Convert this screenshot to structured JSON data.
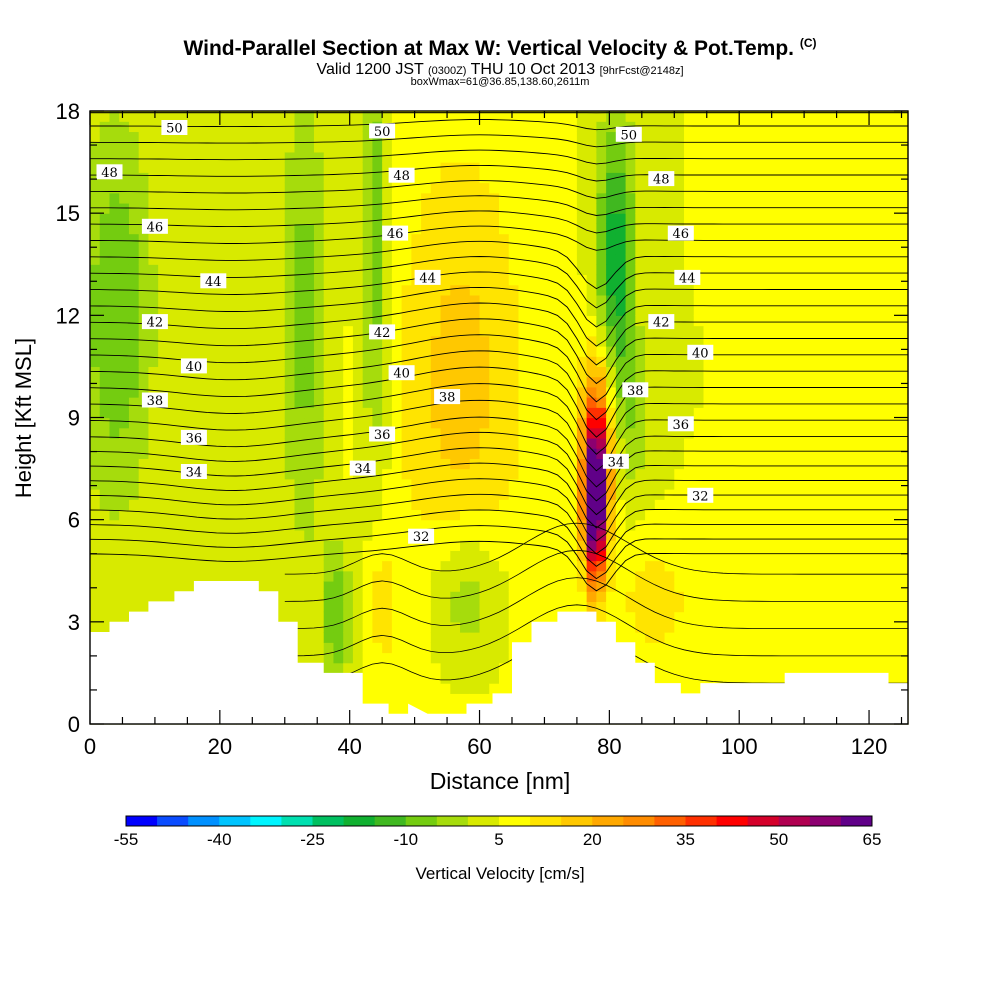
{
  "title": "Wind-Parallel Section at Max W: Vertical Velocity & Pot.Temp.",
  "title_suffix": "(C)",
  "valid_prefix": "Valid 1200 JST",
  "valid_utc": "(0300Z)",
  "valid_date": "THU 10 Oct 2013",
  "forecast": "[9hrFcst@2148z]",
  "boxwmax": "boxWmax=61@36.85,138.60,2611m",
  "chart_data": {
    "type": "heatmap",
    "xlabel": "Distance [nm]",
    "ylabel": "Height [Kft MSL]",
    "xlim": [
      0,
      126
    ],
    "ylim": [
      0,
      18
    ],
    "x_ticks": [
      0,
      20,
      40,
      60,
      80,
      100,
      120
    ],
    "y_ticks": [
      0,
      3,
      6,
      9,
      12,
      15,
      18
    ],
    "colorbar_label": "Vertical Velocity [cm/s]",
    "colorbar_ticks": [
      -55,
      -40,
      -25,
      -10,
      5,
      20,
      35,
      50,
      65
    ],
    "colorbar_colors": [
      "#0000ff",
      "#0a4cff",
      "#0090ff",
      "#00c4ff",
      "#00f5ff",
      "#00e0b0",
      "#00c060",
      "#10b030",
      "#40b820",
      "#74cc10",
      "#a6dc0c",
      "#d8ea00",
      "#ffff00",
      "#ffe400",
      "#ffc800",
      "#ffa800",
      "#ff8c00",
      "#ff6000",
      "#ff3000",
      "#ff0000",
      "#d4002a",
      "#b00050",
      "#8c0070",
      "#600088"
    ],
    "contour_variable": "Pot.Temp.",
    "contour_labels": [
      {
        "v": "50",
        "x": 13,
        "y": 17.5
      },
      {
        "v": "50",
        "x": 45,
        "y": 17.4
      },
      {
        "v": "50",
        "x": 83,
        "y": 17.3
      },
      {
        "v": "48",
        "x": 3,
        "y": 16.2
      },
      {
        "v": "48",
        "x": 48,
        "y": 16.1
      },
      {
        "v": "48",
        "x": 88,
        "y": 16.0
      },
      {
        "v": "46",
        "x": 10,
        "y": 14.6
      },
      {
        "v": "46",
        "x": 47,
        "y": 14.4
      },
      {
        "v": "46",
        "x": 91,
        "y": 14.4
      },
      {
        "v": "44",
        "x": 19,
        "y": 13.0
      },
      {
        "v": "44",
        "x": 52,
        "y": 13.1
      },
      {
        "v": "44",
        "x": 92,
        "y": 13.1
      },
      {
        "v": "42",
        "x": 10,
        "y": 11.8
      },
      {
        "v": "42",
        "x": 45,
        "y": 11.5
      },
      {
        "v": "42",
        "x": 88,
        "y": 11.8
      },
      {
        "v": "40",
        "x": 16,
        "y": 10.5
      },
      {
        "v": "40",
        "x": 48,
        "y": 10.3
      },
      {
        "v": "40",
        "x": 94,
        "y": 10.9
      },
      {
        "v": "38",
        "x": 10,
        "y": 9.5
      },
      {
        "v": "38",
        "x": 55,
        "y": 9.6
      },
      {
        "v": "38",
        "x": 84,
        "y": 9.8
      },
      {
        "v": "36",
        "x": 16,
        "y": 8.4
      },
      {
        "v": "36",
        "x": 45,
        "y": 8.5
      },
      {
        "v": "36",
        "x": 91,
        "y": 8.8
      },
      {
        "v": "34",
        "x": 16,
        "y": 7.4
      },
      {
        "v": "34",
        "x": 42,
        "y": 7.5
      },
      {
        "v": "34",
        "x": 81,
        "y": 7.7
      },
      {
        "v": "32",
        "x": 51,
        "y": 5.5
      },
      {
        "v": "32",
        "x": 94,
        "y": 6.7
      }
    ],
    "terrain_profile": [
      [
        0,
        2.7
      ],
      [
        3,
        2.7
      ],
      [
        3,
        3.0
      ],
      [
        6,
        3.0
      ],
      [
        6,
        3.3
      ],
      [
        9,
        3.3
      ],
      [
        9,
        3.6
      ],
      [
        13,
        3.6
      ],
      [
        13,
        3.9
      ],
      [
        16,
        3.9
      ],
      [
        16,
        4.2
      ],
      [
        26,
        4.2
      ],
      [
        26,
        3.9
      ],
      [
        29,
        3.9
      ],
      [
        29,
        3.0
      ],
      [
        32,
        3.0
      ],
      [
        32,
        1.8
      ],
      [
        36,
        1.8
      ],
      [
        36,
        1.5
      ],
      [
        42,
        1.5
      ],
      [
        42,
        0.6
      ],
      [
        46,
        0.6
      ],
      [
        46,
        0.3
      ],
      [
        49,
        0.3
      ],
      [
        49,
        0.6
      ],
      [
        52,
        0.3
      ],
      [
        58,
        0.3
      ],
      [
        58,
        0.6
      ],
      [
        62,
        0.6
      ],
      [
        62,
        0.9
      ],
      [
        65,
        0.9
      ],
      [
        65,
        2.4
      ],
      [
        68,
        2.4
      ],
      [
        68,
        3.0
      ],
      [
        72,
        3.0
      ],
      [
        72,
        3.3
      ],
      [
        78,
        3.3
      ],
      [
        78,
        3.0
      ],
      [
        81,
        3.0
      ],
      [
        81,
        2.4
      ],
      [
        84,
        2.4
      ],
      [
        84,
        1.8
      ],
      [
        87,
        1.8
      ],
      [
        87,
        1.2
      ],
      [
        91,
        1.2
      ],
      [
        91,
        0.9
      ],
      [
        94,
        0.9
      ],
      [
        94,
        1.2
      ],
      [
        107,
        1.2
      ],
      [
        107,
        1.5
      ],
      [
        123,
        1.5
      ],
      [
        123,
        1.2
      ],
      [
        126,
        1.2
      ]
    ],
    "wmax_location": {
      "x": 78,
      "y": 5.8,
      "value": 61
    }
  }
}
